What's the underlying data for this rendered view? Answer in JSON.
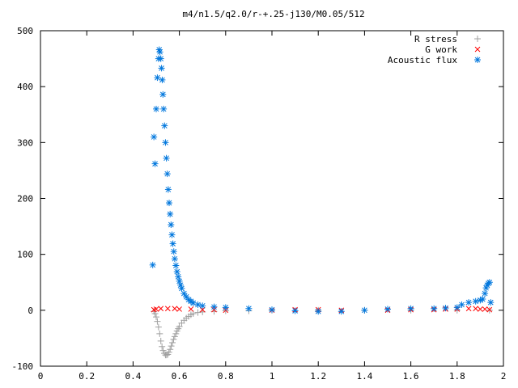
{
  "chart_data": {
    "type": "scatter",
    "title": "m4/n1.5/q2.0/r-+.25-j130/M0.05/512",
    "xlabel": "",
    "ylabel": "",
    "xlim": [
      0,
      2
    ],
    "ylim": [
      -100,
      500
    ],
    "x_ticks": [
      0,
      0.2,
      0.4,
      0.6,
      0.8,
      1,
      1.2,
      1.4,
      1.6,
      1.8,
      2
    ],
    "x_tick_labels": [
      "0",
      "0.2",
      "0.4",
      "0.6",
      "0.8",
      "1",
      "1.2",
      "1.4",
      "1.6",
      "1.8",
      "2"
    ],
    "y_ticks": [
      -100,
      0,
      100,
      200,
      300,
      400,
      500
    ],
    "y_tick_labels": [
      "-100",
      "0",
      "100",
      "200",
      "300",
      "400",
      "500"
    ],
    "grid": false,
    "legend_position": "top-right",
    "series": [
      {
        "name": "R stress",
        "marker": "plus",
        "color": "#a0a0a0",
        "points": [
          [
            0.49,
            -2
          ],
          [
            0.495,
            -6
          ],
          [
            0.5,
            -12
          ],
          [
            0.505,
            -20
          ],
          [
            0.51,
            -30
          ],
          [
            0.515,
            -42
          ],
          [
            0.52,
            -55
          ],
          [
            0.525,
            -65
          ],
          [
            0.53,
            -72
          ],
          [
            0.535,
            -77
          ],
          [
            0.54,
            -80
          ],
          [
            0.545,
            -80
          ],
          [
            0.55,
            -79
          ],
          [
            0.555,
            -75
          ],
          [
            0.56,
            -70
          ],
          [
            0.565,
            -64
          ],
          [
            0.57,
            -58
          ],
          [
            0.575,
            -52
          ],
          [
            0.58,
            -47
          ],
          [
            0.585,
            -42
          ],
          [
            0.59,
            -37
          ],
          [
            0.595,
            -33
          ],
          [
            0.6,
            -29
          ],
          [
            0.61,
            -23
          ],
          [
            0.62,
            -18
          ],
          [
            0.63,
            -14
          ],
          [
            0.64,
            -11
          ],
          [
            0.65,
            -8
          ],
          [
            0.66,
            -6
          ],
          [
            0.68,
            -4
          ],
          [
            0.7,
            -3
          ],
          [
            0.75,
            -2
          ],
          [
            0.8,
            -1
          ],
          [
            0.9,
            -1
          ],
          [
            1.0,
            0
          ],
          [
            1.2,
            0
          ],
          [
            1.4,
            0
          ],
          [
            1.6,
            0
          ],
          [
            1.8,
            0
          ],
          [
            1.94,
            0
          ]
        ]
      },
      {
        "name": "G work",
        "marker": "cross",
        "color": "#ff0000",
        "points": [
          [
            0.49,
            1
          ],
          [
            0.5,
            2
          ],
          [
            0.52,
            3
          ],
          [
            0.55,
            3
          ],
          [
            0.58,
            3
          ],
          [
            0.6,
            2
          ],
          [
            0.65,
            2
          ],
          [
            0.7,
            1
          ],
          [
            0.75,
            1
          ],
          [
            0.8,
            0
          ],
          [
            1.0,
            0
          ],
          [
            1.1,
            1
          ],
          [
            1.2,
            1
          ],
          [
            1.3,
            0
          ],
          [
            1.5,
            0
          ],
          [
            1.6,
            1
          ],
          [
            1.7,
            1
          ],
          [
            1.75,
            2
          ],
          [
            1.8,
            2
          ],
          [
            1.85,
            3
          ],
          [
            1.88,
            3
          ],
          [
            1.9,
            2
          ],
          [
            1.92,
            2
          ],
          [
            1.94,
            1
          ]
        ]
      },
      {
        "name": "Acoustic flux",
        "marker": "star",
        "color": "#0077dd",
        "points": [
          [
            0.485,
            81
          ],
          [
            0.49,
            310
          ],
          [
            0.495,
            262
          ],
          [
            0.5,
            360
          ],
          [
            0.505,
            416
          ],
          [
            0.51,
            450
          ],
          [
            0.513,
            466
          ],
          [
            0.516,
            462
          ],
          [
            0.52,
            450
          ],
          [
            0.523,
            433
          ],
          [
            0.526,
            412
          ],
          [
            0.529,
            386
          ],
          [
            0.532,
            360
          ],
          [
            0.536,
            330
          ],
          [
            0.54,
            300
          ],
          [
            0.544,
            272
          ],
          [
            0.548,
            244
          ],
          [
            0.552,
            216
          ],
          [
            0.556,
            192
          ],
          [
            0.56,
            172
          ],
          [
            0.564,
            153
          ],
          [
            0.568,
            135
          ],
          [
            0.572,
            119
          ],
          [
            0.576,
            105
          ],
          [
            0.58,
            92
          ],
          [
            0.585,
            80
          ],
          [
            0.59,
            69
          ],
          [
            0.595,
            60
          ],
          [
            0.6,
            52
          ],
          [
            0.605,
            45
          ],
          [
            0.61,
            39
          ],
          [
            0.62,
            30
          ],
          [
            0.63,
            24
          ],
          [
            0.64,
            19
          ],
          [
            0.65,
            16
          ],
          [
            0.66,
            13
          ],
          [
            0.68,
            10
          ],
          [
            0.7,
            8
          ],
          [
            0.75,
            6
          ],
          [
            0.8,
            5
          ],
          [
            0.9,
            3
          ],
          [
            1.0,
            1
          ],
          [
            1.1,
            -1
          ],
          [
            1.2,
            -2
          ],
          [
            1.3,
            -2
          ],
          [
            1.4,
            0
          ],
          [
            1.5,
            2
          ],
          [
            1.6,
            3
          ],
          [
            1.7,
            3
          ],
          [
            1.75,
            4
          ],
          [
            1.8,
            5
          ],
          [
            1.82,
            10
          ],
          [
            1.85,
            14
          ],
          [
            1.88,
            16
          ],
          [
            1.9,
            18
          ],
          [
            1.91,
            20
          ],
          [
            1.92,
            30
          ],
          [
            1.925,
            40
          ],
          [
            1.93,
            45
          ],
          [
            1.935,
            48
          ],
          [
            1.94,
            50
          ],
          [
            1.945,
            14
          ]
        ]
      }
    ]
  }
}
